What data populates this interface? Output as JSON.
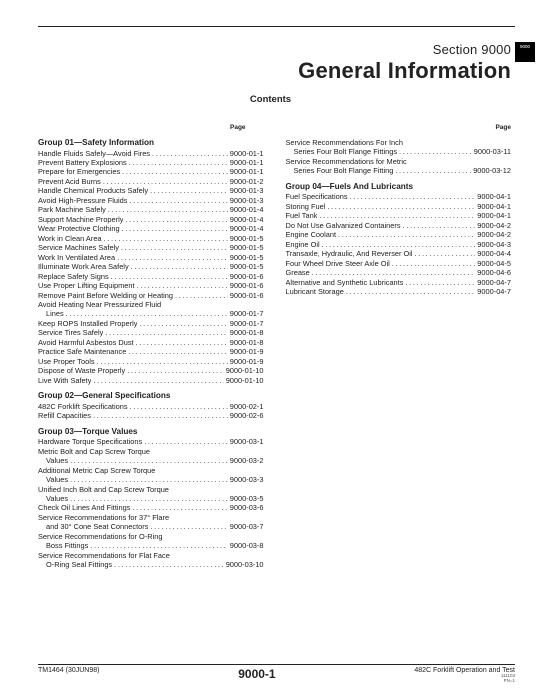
{
  "tab": "9000",
  "header": {
    "section": "Section 9000",
    "title": "General Information",
    "subtitle": "Contents",
    "page_label": "Page"
  },
  "columns": [
    {
      "groups": [
        {
          "title": "Group 01—Safety Information",
          "entries": [
            {
              "label": "Handle Fluids Safely—Avoid Fires",
              "page": "9000-01-1"
            },
            {
              "label": "Prevent Battery Explosions",
              "page": "9000-01-1"
            },
            {
              "label": "Prepare for Emergencies",
              "page": "9000-01-1"
            },
            {
              "label": "Prevent Acid Burns",
              "page": "9000-01-2"
            },
            {
              "label": "Handle Chemical Products Safely",
              "page": "9000-01-3"
            },
            {
              "label": "Avoid High-Pressure Fluids",
              "page": "9000-01-3"
            },
            {
              "label": "Park Machine Safely",
              "page": "9000-01-4"
            },
            {
              "label": "Support Machine Properly",
              "page": "9000-01-4"
            },
            {
              "label": "Wear Protective Clothing",
              "page": "9000-01-4"
            },
            {
              "label": "Work in Clean Area",
              "page": "9000-01-5"
            },
            {
              "label": "Service Machines Safely",
              "page": "9000-01-5"
            },
            {
              "label": "Work In Ventilated Area",
              "page": "9000-01-5"
            },
            {
              "label": "Illuminate Work Area Safely",
              "page": "9000-01-5"
            },
            {
              "label": "Replace Safety Signs",
              "page": "9000-01-6"
            },
            {
              "label": "Use Proper Lifting Equipment",
              "page": "9000-01-6"
            },
            {
              "label": "Remove Paint Before Welding or Heating",
              "page": "9000-01-6"
            },
            {
              "label": "Avoid Heating Near Pressurized Fluid",
              "cont": true
            },
            {
              "label": "Lines",
              "indent": true,
              "page": "9000-01-7"
            },
            {
              "label": "Keep ROPS Installed Properly",
              "page": "9000-01-7"
            },
            {
              "label": "Service Tires Safely",
              "page": "9000-01-8"
            },
            {
              "label": "Avoid Harmful Asbestos Dust",
              "page": "9000-01-8"
            },
            {
              "label": "Practice Safe Maintenance",
              "page": "9000-01-9"
            },
            {
              "label": "Use Proper Tools",
              "page": "9000-01-9"
            },
            {
              "label": "Dispose of Waste Properly",
              "page": "9000-01-10"
            },
            {
              "label": "Live With Safety",
              "page": "9000-01-10"
            }
          ]
        },
        {
          "title": "Group 02—General Specifications",
          "entries": [
            {
              "label": "482C Forklift Specifications",
              "page": "9000-02-1"
            },
            {
              "label": "Refill Capacities",
              "page": "9000-02-6"
            }
          ]
        },
        {
          "title": "Group 03—Torque Values",
          "entries": [
            {
              "label": "Hardware Torque Specifications",
              "page": "9000-03-1"
            },
            {
              "label": "Metric Bolt and Cap Screw Torque",
              "cont": true
            },
            {
              "label": "Values",
              "indent": true,
              "page": "9000-03-2"
            },
            {
              "label": "Additional Metric Cap Screw Torque",
              "cont": true
            },
            {
              "label": "Values",
              "indent": true,
              "page": "9000-03-3"
            },
            {
              "label": "Unified Inch Bolt and Cap Screw Torque",
              "cont": true
            },
            {
              "label": "Values",
              "indent": true,
              "page": "9000-03-5"
            },
            {
              "label": "Check Oil Lines And Fittings",
              "page": "9000-03-6"
            },
            {
              "label": "Service Recommendations for 37° Flare",
              "cont": true
            },
            {
              "label": "and 30° Cone Seat Connectors",
              "indent": true,
              "page": "9000-03-7"
            },
            {
              "label": "Service Recommendations for O-Ring",
              "cont": true
            },
            {
              "label": "Boss Fittings",
              "indent": true,
              "page": "9000-03-8"
            },
            {
              "label": "Service Recommendations for Flat Face",
              "cont": true
            },
            {
              "label": "O-Ring Seal Fittings",
              "indent": true,
              "page": "9000-03-10"
            }
          ]
        }
      ]
    },
    {
      "groups": [
        {
          "title": "",
          "entries": [
            {
              "label": "Service Recommendations For Inch",
              "cont": true
            },
            {
              "label": "Series Four Bolt Flange Fittings",
              "indent": true,
              "page": "9000-03-11"
            },
            {
              "label": "Service Recommendations for Metric",
              "cont": true
            },
            {
              "label": "Series Four Bolt Flange Fitting",
              "indent": true,
              "page": "9000-03-12"
            }
          ]
        },
        {
          "title": "Group 04—Fuels And Lubricants",
          "entries": [
            {
              "label": "Fuel Specifications",
              "page": "9000-04-1"
            },
            {
              "label": "Storing Fuel",
              "page": "9000-04-1"
            },
            {
              "label": "Fuel Tank",
              "page": "9000-04-1"
            },
            {
              "label": "Do Not Use Galvanized Containers",
              "page": "9000-04-2"
            },
            {
              "label": "Engine Coolant",
              "page": "9000-04-2"
            },
            {
              "label": "Engine Oil",
              "page": "9000-04-3"
            },
            {
              "label": "Transaxle, Hydraulic, And Reverser Oil",
              "page": "9000-04-4"
            },
            {
              "label": "Four Wheel Drive Steer Axle Oil",
              "page": "9000-04-5"
            },
            {
              "label": "Grease",
              "page": "9000-04-6"
            },
            {
              "label": "Alternative and Synthetic Lubricants",
              "page": "9000-04-7"
            },
            {
              "label": "Lubricant Storage",
              "page": "9000-04-7"
            }
          ]
        }
      ]
    }
  ],
  "footer": {
    "left": "TM1464 (30JUN98)",
    "center": "9000-1",
    "right": "482C Forklift Operation and Test",
    "sub1": "111103",
    "sub2": "PN=1"
  }
}
